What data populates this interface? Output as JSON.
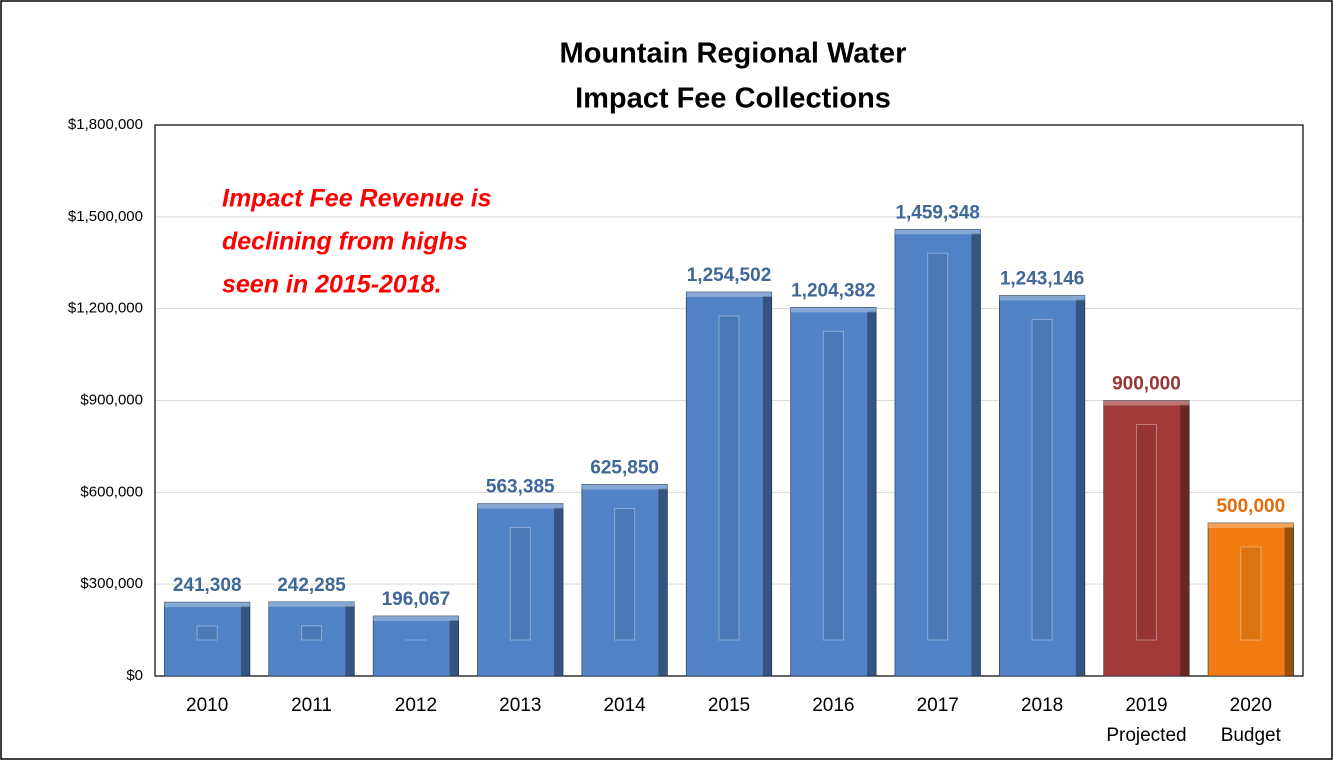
{
  "chart_data": {
    "type": "bar",
    "title": [
      "Mountain Regional Water",
      "Impact Fee Collections"
    ],
    "annotation": [
      "Impact Fee Revenue is",
      "declining  from highs",
      "seen in 2015-2018."
    ],
    "categories": [
      "2010",
      "2011",
      "2012",
      "2013",
      "2014",
      "2015",
      "2016",
      "2017",
      "2018",
      [
        "2019",
        "Projected"
      ],
      [
        "2020",
        "Budget"
      ]
    ],
    "values": [
      241308,
      242285,
      196067,
      563385,
      625850,
      1254502,
      1204382,
      1459348,
      1243146,
      900000,
      500000
    ],
    "value_labels": [
      "241,308",
      "242,285",
      "196,067",
      "563,385",
      "625,850",
      "1,254,502",
      "1,204,382",
      "1,459,348",
      "1,243,146",
      "900,000",
      "500,000"
    ],
    "colors": [
      "#5283c6",
      "#5283c6",
      "#5283c6",
      "#5283c6",
      "#5283c6",
      "#5283c6",
      "#5283c6",
      "#5283c6",
      "#5283c6",
      "#a33a3a",
      "#f07c12"
    ],
    "label_colors": [
      "#3f6797",
      "#3f6797",
      "#3f6797",
      "#3f6797",
      "#3f6797",
      "#3f6797",
      "#3f6797",
      "#3f6797",
      "#3f6797",
      "#953734",
      "#e46c0a"
    ],
    "ylim": [
      0,
      1800000
    ],
    "yticks": [
      {
        "value": 0,
        "label": "$0"
      },
      {
        "value": 300000,
        "label": "$300,000"
      },
      {
        "value": 600000,
        "label": "$600,000"
      },
      {
        "value": 900000,
        "label": "$900,000"
      },
      {
        "value": 1200000,
        "label": "$1,200,000"
      },
      {
        "value": 1500000,
        "label": "$1,500,000"
      },
      {
        "value": 1800000,
        "label": "$1,800,000"
      }
    ],
    "grid": true
  }
}
